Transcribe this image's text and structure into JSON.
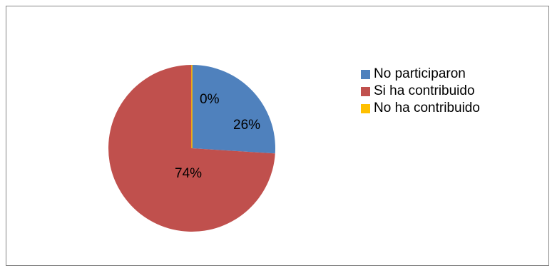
{
  "chart_data": {
    "type": "pie",
    "categories": [
      "No participaron",
      "Si ha contribuido",
      "No ha contribuido"
    ],
    "values": [
      26,
      74,
      0
    ],
    "labels": [
      "26%",
      "74%",
      "0%"
    ],
    "colors": [
      "#4f81bd",
      "#c0504d",
      "#ffc000"
    ],
    "title": "",
    "legend_position": "right",
    "start_angle_deg": 90,
    "direction": "clockwise"
  }
}
